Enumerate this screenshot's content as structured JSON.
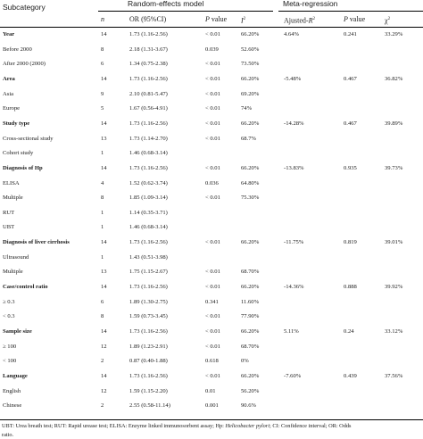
{
  "table": {
    "group_headers": {
      "subcategory": "Subcategory",
      "random": "Random-effects model",
      "meta": "Meta-regression"
    },
    "columns": {
      "n": "n",
      "or": "OR (95%CI)",
      "p_label": "P",
      "p_suffix": " value",
      "i2_label": "I",
      "i2_sup": "2",
      "adj_label": "Ajusted-",
      "adj_ital": "R",
      "adj_sup": "2",
      "meta_p_label": "P",
      "meta_p_suffix": " value",
      "chi_label": "χ",
      "chi_sup": "2"
    },
    "rows": [
      {
        "label": "Year",
        "n": "14",
        "or": "1.73 (1.16-2.56)",
        "p": "< 0.01",
        "i2": "66.20%",
        "r2": "4.64%",
        "mp": "0.241",
        "chi": "33.29%",
        "bold": true
      },
      {
        "label": "Before 2000",
        "n": "8",
        "or": "2.18 (1.31-3.67)",
        "p": "0.039",
        "i2": "52.60%",
        "r2": "",
        "mp": "",
        "chi": "",
        "bold": false
      },
      {
        "label": "After 2000 (2000)",
        "n": "6",
        "or": "1.34 (0.75-2.38)",
        "p": "< 0.01",
        "i2": "73.50%",
        "r2": "",
        "mp": "",
        "chi": "",
        "bold": false
      },
      {
        "label": "Area",
        "n": "14",
        "or": "1.73 (1.16-2.56)",
        "p": "< 0.01",
        "i2": "66.20%",
        "r2": "-5.48%",
        "mp": "0.467",
        "chi": "36.82%",
        "bold": true
      },
      {
        "label": "Asia",
        "n": "9",
        "or": "2.10 (0.81-5.47)",
        "p": "< 0.01",
        "i2": "69.20%",
        "r2": "",
        "mp": "",
        "chi": "",
        "bold": false
      },
      {
        "label": "Europe",
        "n": "5",
        "or": "1.67 (0.56-4.91)",
        "p": "< 0.01",
        "i2": "74%",
        "r2": "",
        "mp": "",
        "chi": "",
        "bold": false
      },
      {
        "label": "Study type",
        "n": "14",
        "or": "1.73 (1.16-2.56)",
        "p": "< 0.01",
        "i2": "66.20%",
        "r2": "-14.28%",
        "mp": "0.467",
        "chi": "39.89%",
        "bold": true
      },
      {
        "label": "Cross-sectional study",
        "n": "13",
        "or": "1.73 (1.14-2.70)",
        "p": "< 0.01",
        "i2": "68.7%",
        "r2": "",
        "mp": "",
        "chi": "",
        "bold": false
      },
      {
        "label": "Cohort study",
        "n": "1",
        "or": "1.46 (0.68-3.14)",
        "p": "",
        "i2": "",
        "r2": "",
        "mp": "",
        "chi": "",
        "bold": false
      },
      {
        "label": "Diagnosis of Hp",
        "n": "14",
        "or": "1.73 (1.16-2.56)",
        "p": "< 0.01",
        "i2": "66.20%",
        "r2": "-13.83%",
        "mp": "0.935",
        "chi": "39.73%",
        "bold": true
      },
      {
        "label": "ELISA",
        "n": "4",
        "or": "1.52 (0.62-3.74)",
        "p": "0.036",
        "i2": "64.80%",
        "r2": "",
        "mp": "",
        "chi": "",
        "bold": false
      },
      {
        "label": "Multiple",
        "n": "8",
        "or": "1.85 (1.09-3.14)",
        "p": "< 0.01",
        "i2": "75.30%",
        "r2": "",
        "mp": "",
        "chi": "",
        "bold": false
      },
      {
        "label": "RUT",
        "n": "1",
        "or": "1.14 (0.35-3.71)",
        "p": "",
        "i2": "",
        "r2": "",
        "mp": "",
        "chi": "",
        "bold": false
      },
      {
        "label": "UBT",
        "n": "1",
        "or": "1.46 (0.68-3.14)",
        "p": "",
        "i2": "",
        "r2": "",
        "mp": "",
        "chi": "",
        "bold": false
      },
      {
        "label": "Diagnosis of liver cirrhosis",
        "n": "14",
        "or": "1.73 (1.16-2.56)",
        "p": "< 0.01",
        "i2": "66.20%",
        "r2": "-11.75%",
        "mp": "0.819",
        "chi": "39.01%",
        "bold": true
      },
      {
        "label": "Ultrasound",
        "n": "1",
        "or": "1.43 (0.51-3.98)",
        "p": "",
        "i2": "",
        "r2": "",
        "mp": "",
        "chi": "",
        "bold": false
      },
      {
        "label": "Multiple",
        "n": "13",
        "or": "1.75 (1.15-2.67)",
        "p": "< 0.01",
        "i2": "68.70%",
        "r2": "",
        "mp": "",
        "chi": "",
        "bold": false
      },
      {
        "label": "Case/control ratio",
        "n": "14",
        "or": "1.73 (1.16-2.56)",
        "p": "< 0.01",
        "i2": "66.20%",
        "r2": "-14.36%",
        "mp": "0.888",
        "chi": "39.92%",
        "bold": true
      },
      {
        "label": "≥ 0.3",
        "n": "6",
        "or": "1.89 (1.30-2.75)",
        "p": "0.341",
        "i2": "11.60%",
        "r2": "",
        "mp": "",
        "chi": "",
        "bold": false
      },
      {
        "label": "< 0.3",
        "n": "8",
        "or": "1.59 (0.73-3.45)",
        "p": "< 0.01",
        "i2": "77.90%",
        "r2": "",
        "mp": "",
        "chi": "",
        "bold": false
      },
      {
        "label": "Sample size",
        "n": "14",
        "or": "1.73 (1.16-2.56)",
        "p": "< 0.01",
        "i2": "66.20%",
        "r2": "5.11%",
        "mp": "0.24",
        "chi": "33.12%",
        "bold": true
      },
      {
        "label": "≥ 100",
        "n": "12",
        "or": "1.89 (1.23-2.91)",
        "p": "< 0.01",
        "i2": "68.70%",
        "r2": "",
        "mp": "",
        "chi": "",
        "bold": false
      },
      {
        "label": "< 100",
        "n": "2",
        "or": "0.87 (0.40-1.88)",
        "p": "0.618",
        "i2": "0%",
        "r2": "",
        "mp": "",
        "chi": "",
        "bold": false
      },
      {
        "label": "Language",
        "n": "14",
        "or": "1.73 (1.16-2.56)",
        "p": "< 0.01",
        "i2": "66.20%",
        "r2": "-7.60%",
        "mp": "0.439",
        "chi": "37.56%",
        "bold": true
      },
      {
        "label": "English",
        "n": "12",
        "or": "1.59 (1.15-2.20)",
        "p": "0.01",
        "i2": "56.20%",
        "r2": "",
        "mp": "",
        "chi": "",
        "bold": false
      },
      {
        "label": "Chinese",
        "n": "2",
        "or": "2.55 (0.58-11.14)",
        "p": "0.001",
        "i2": "90.6%",
        "r2": "",
        "mp": "",
        "chi": "",
        "bold": false
      }
    ]
  },
  "footnote": {
    "line1_pre": "UBT: Urea breath test; RUT: Rapid urease test; ELISA: Enzyme linked immunosorbent assay; Hp: ",
    "line1_ital": "Helicobacter pylori",
    "line1_post": "; CI: Confidence interval; OR: Odds",
    "line2": "ratio."
  }
}
